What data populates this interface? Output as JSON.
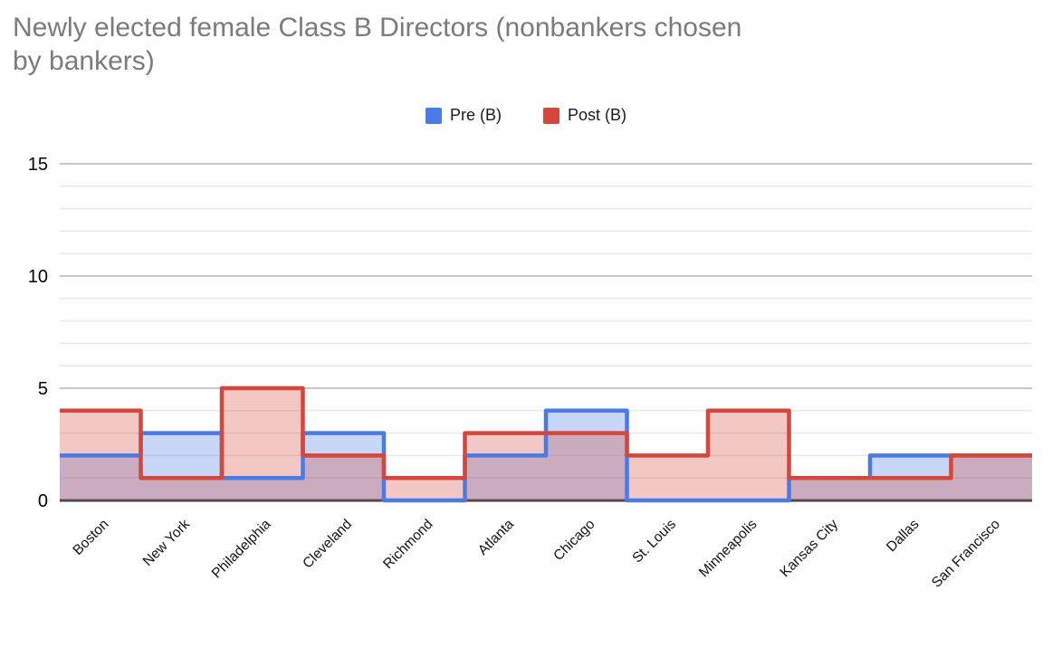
{
  "header": {
    "title_line1": "Newly elected female Class B Directors (nonbankers chosen",
    "title_line2": "by bankers)"
  },
  "legend": {
    "items": [
      {
        "label": "Pre (B)",
        "color": "#4a7be4"
      },
      {
        "label": "Post (B)",
        "color": "#d5473b"
      }
    ]
  },
  "chart_data": {
    "type": "area",
    "subtype": "stepped-area",
    "title": "Newly elected female Class B Directors (nonbankers chosen by bankers)",
    "categories": [
      "Boston",
      "New York",
      "Philadelphia",
      "Cleveland",
      "Richmond",
      "Atlanta",
      "Chicago",
      "St. Louis",
      "Minneapolis",
      "Kansas City",
      "Dallas",
      "San Francisco"
    ],
    "series": [
      {
        "name": "Pre (B)",
        "color": "#4a7be4",
        "values": [
          2,
          3,
          1,
          3,
          0,
          2,
          4,
          0,
          0,
          1,
          2,
          2
        ]
      },
      {
        "name": "Post (B)",
        "color": "#d5473b",
        "values": [
          4,
          1,
          5,
          2,
          1,
          3,
          3,
          2,
          4,
          1,
          1,
          2
        ]
      }
    ],
    "xlabel": "",
    "ylabel": "",
    "ylim": [
      0,
      15
    ],
    "yticks": [
      0,
      5,
      10,
      15
    ],
    "minor_grid_step": 1,
    "grid": "on",
    "legend_position": "top",
    "fill_opacity": 0.3,
    "x_label_rotation_deg": 45,
    "colors": {
      "title_text": "#7b7b7b",
      "axis_text": "#000000",
      "major_gridline": "#c9c9c9",
      "minor_gridline": "#e9e9e9",
      "baseline": "#404040",
      "background": "#ffffff"
    }
  }
}
